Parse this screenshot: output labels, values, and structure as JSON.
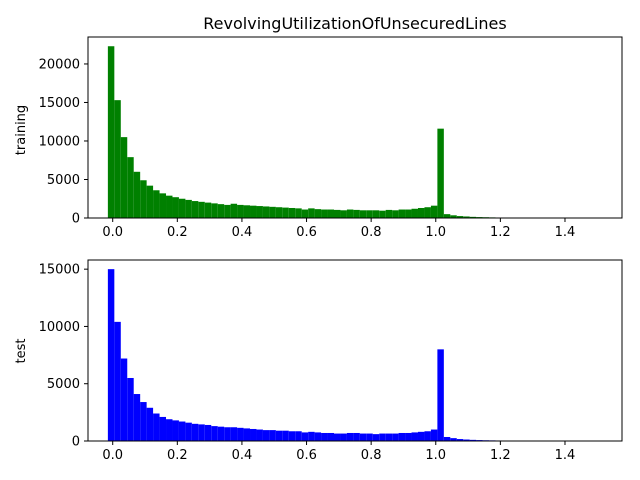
{
  "chart_data": [
    {
      "type": "bar",
      "title": "RevolvingUtilizationOfUnsecuredLines",
      "xlabel": "",
      "ylabel": "training",
      "color": "#008000",
      "xlim": [
        -0.0765,
        1.5765
      ],
      "ylim": [
        0,
        23500
      ],
      "xticks": [
        "0.0",
        "0.2",
        "0.4",
        "0.6",
        "0.8",
        "1.0",
        "1.2",
        "1.4"
      ],
      "yticks": [
        "0",
        "5000",
        "10000",
        "15000",
        "20000"
      ],
      "bin_start": -0.015,
      "bin_width": 0.02,
      "values": [
        22300,
        15300,
        10500,
        7900,
        6000,
        4900,
        4200,
        3600,
        3200,
        2900,
        2700,
        2500,
        2350,
        2200,
        2100,
        2000,
        1900,
        1800,
        1700,
        1850,
        1700,
        1650,
        1600,
        1550,
        1500,
        1450,
        1400,
        1350,
        1300,
        1250,
        1100,
        1250,
        1150,
        1100,
        1100,
        1050,
        1000,
        1100,
        1050,
        1000,
        1000,
        1000,
        950,
        1050,
        1000,
        1100,
        1100,
        1200,
        1300,
        1400,
        1600,
        11600,
        500,
        350,
        250,
        200,
        150,
        120,
        100,
        80,
        60,
        50,
        45,
        40,
        35,
        30,
        28,
        25,
        22,
        20,
        18,
        16,
        15,
        14,
        13,
        12
      ]
    },
    {
      "type": "bar",
      "title": "",
      "xlabel": "",
      "ylabel": "test",
      "color": "#0000ff",
      "xlim": [
        -0.0765,
        1.5765
      ],
      "ylim": [
        0,
        15800
      ],
      "xticks": [
        "0.0",
        "0.2",
        "0.4",
        "0.6",
        "0.8",
        "1.0",
        "1.2",
        "1.4"
      ],
      "yticks": [
        "0",
        "5000",
        "10000",
        "15000"
      ],
      "bin_start": -0.015,
      "bin_width": 0.02,
      "values": [
        15000,
        10400,
        7200,
        5500,
        4100,
        3400,
        2900,
        2400,
        2100,
        1900,
        1800,
        1700,
        1600,
        1500,
        1450,
        1400,
        1300,
        1250,
        1200,
        1200,
        1150,
        1100,
        1050,
        1000,
        950,
        950,
        900,
        900,
        850,
        850,
        750,
        800,
        750,
        700,
        700,
        650,
        650,
        700,
        700,
        650,
        650,
        600,
        650,
        650,
        650,
        700,
        700,
        750,
        800,
        850,
        1000,
        8000,
        350,
        250,
        170,
        130,
        100,
        80,
        65,
        55,
        45,
        40,
        35,
        30,
        26,
        22,
        20,
        18,
        16,
        14,
        12,
        11,
        10,
        9,
        8,
        7
      ]
    }
  ]
}
